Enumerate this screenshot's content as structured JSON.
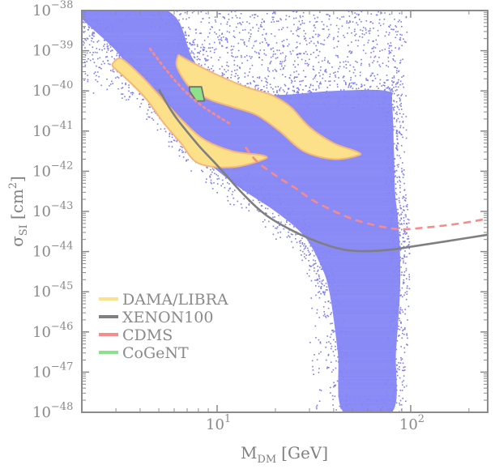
{
  "chart_data": {
    "type": "scatter",
    "title": "",
    "xlabel": "M",
    "xlabel_sub": "DM",
    "xlabel_unit": "[GeV]",
    "ylabel": "σ",
    "ylabel_sub": "SI",
    "ylabel_unit": "[cm",
    "ylabel_unit_sup": "2",
    "ylabel_unit_close": "]",
    "xscale": "log",
    "yscale": "log",
    "xlim": [
      2.0,
      250
    ],
    "ylim": [
      1e-48,
      1e-38
    ],
    "x_ticks": [
      {
        "base": "10",
        "exp": "1",
        "value": 10
      },
      {
        "base": "10",
        "exp": "2",
        "value": 100
      }
    ],
    "y_ticks": [
      {
        "base": "10",
        "exp": "−38",
        "value": -38
      },
      {
        "base": "10",
        "exp": "−39",
        "value": -39
      },
      {
        "base": "10",
        "exp": "−40",
        "value": -40
      },
      {
        "base": "10",
        "exp": "−41",
        "value": -41
      },
      {
        "base": "10",
        "exp": "−42",
        "value": -42
      },
      {
        "base": "10",
        "exp": "−43",
        "value": -43
      },
      {
        "base": "10",
        "exp": "−44",
        "value": -44
      },
      {
        "base": "10",
        "exp": "−45",
        "value": -45
      },
      {
        "base": "10",
        "exp": "−46",
        "value": -46
      },
      {
        "base": "10",
        "exp": "−47",
        "value": -47
      },
      {
        "base": "10",
        "exp": "−48",
        "value": -48
      }
    ],
    "legend": {
      "placement": "lower-left",
      "entries": [
        {
          "label": "DAMA/LIBRA",
          "color": "#fde08a"
        },
        {
          "label": "XENON100",
          "color": "#7f7f7f"
        },
        {
          "label": "CDMS",
          "color": "#f88a8a"
        },
        {
          "label": "CoGeNT",
          "color": "#8ee08a"
        }
      ]
    },
    "colors": {
      "scan_points": "#7b7bf2",
      "scan_fill": "#8484f5",
      "dama_fill": "#fde08a",
      "dama_edge": "#f4b67a",
      "xenon": "#7f7f7f",
      "cdms": "#f88a8a",
      "cogent_fill": "#8ee08a",
      "cogent_edge": "#707070",
      "axis": "#8a8a8a"
    },
    "series": [
      {
        "name": "Model scan (dense region)",
        "kind": "filled-region",
        "note": "log10 sigma vs M [GeV]",
        "boundary": [
          [
            2.0,
            -38.0
          ],
          [
            5.5,
            -38.0
          ],
          [
            7.5,
            -39.2
          ],
          [
            10,
            -40.0
          ],
          [
            20,
            -40.1
          ],
          [
            40,
            -40.0
          ],
          [
            75,
            -40.0
          ],
          [
            80,
            -40.3
          ],
          [
            82,
            -41.5
          ],
          [
            83,
            -42.5
          ],
          [
            86,
            -43.2
          ],
          [
            88,
            -44.0
          ],
          [
            88,
            -45.0
          ],
          [
            84,
            -46.5
          ],
          [
            80,
            -48.0
          ],
          [
            45,
            -48.0
          ],
          [
            42,
            -46.5
          ],
          [
            38,
            -45.0
          ],
          [
            34,
            -44.3
          ],
          [
            28,
            -43.6
          ],
          [
            20,
            -43.0
          ],
          [
            13,
            -42.4
          ],
          [
            9,
            -41.8
          ],
          [
            6.5,
            -41.2
          ],
          [
            5.0,
            -40.5
          ],
          [
            4.0,
            -39.8
          ],
          [
            3.0,
            -39.0
          ],
          [
            2.0,
            -38.2
          ]
        ]
      },
      {
        "name": "DAMA/LIBRA (low-mass region)",
        "kind": "filled-region",
        "boundary": [
          [
            2.9,
            -39.3
          ],
          [
            3.2,
            -39.2
          ],
          [
            4.0,
            -39.6
          ],
          [
            5.0,
            -40.1
          ],
          [
            6.5,
            -40.7
          ],
          [
            8.5,
            -41.2
          ],
          [
            12,
            -41.5
          ],
          [
            17,
            -41.6
          ],
          [
            17.5,
            -41.7
          ],
          [
            12,
            -41.9
          ],
          [
            8.0,
            -41.8
          ],
          [
            6.5,
            -41.3
          ],
          [
            5.3,
            -40.8
          ],
          [
            4.3,
            -40.2
          ],
          [
            3.4,
            -39.7
          ],
          [
            2.9,
            -39.4
          ]
        ]
      },
      {
        "name": "DAMA/LIBRA (high-mass region)",
        "kind": "filled-region",
        "boundary": [
          [
            6.3,
            -39.1
          ],
          [
            7.5,
            -39.3
          ],
          [
            10,
            -39.6
          ],
          [
            14,
            -39.9
          ],
          [
            19,
            -40.1
          ],
          [
            24,
            -40.4
          ],
          [
            30,
            -40.9
          ],
          [
            40,
            -41.3
          ],
          [
            52,
            -41.5
          ],
          [
            54,
            -41.6
          ],
          [
            40,
            -41.7
          ],
          [
            28,
            -41.5
          ],
          [
            21,
            -41.0
          ],
          [
            16,
            -40.6
          ],
          [
            12,
            -40.4
          ],
          [
            9,
            -40.2
          ],
          [
            7.2,
            -39.9
          ],
          [
            6.2,
            -39.4
          ]
        ]
      },
      {
        "name": "CoGeNT",
        "kind": "filled-region",
        "boundary": [
          [
            7.2,
            -39.9
          ],
          [
            8.3,
            -39.9
          ],
          [
            8.6,
            -40.25
          ],
          [
            7.8,
            -40.25
          ],
          [
            7.2,
            -40.0
          ]
        ]
      },
      {
        "name": "XENON100",
        "kind": "line",
        "style": "solid",
        "points": [
          [
            5.0,
            -39.96
          ],
          [
            6.0,
            -40.6
          ],
          [
            8.0,
            -41.35
          ],
          [
            10,
            -41.85
          ],
          [
            13.7,
            -42.58
          ],
          [
            18,
            -43.1
          ],
          [
            25,
            -43.5
          ],
          [
            35,
            -43.8
          ],
          [
            45,
            -43.95
          ],
          [
            58,
            -43.99
          ],
          [
            80,
            -43.95
          ],
          [
            100,
            -43.88
          ],
          [
            150,
            -43.75
          ],
          [
            250,
            -43.58
          ]
        ]
      },
      {
        "name": "CDMS (dotted, low mass)",
        "kind": "line",
        "style": "dotted",
        "points": [
          [
            4.5,
            -38.95
          ],
          [
            5.5,
            -39.5
          ],
          [
            6.8,
            -40.0
          ],
          [
            8.5,
            -40.4
          ],
          [
            11.5,
            -40.8
          ]
        ]
      },
      {
        "name": "CDMS",
        "kind": "line",
        "style": "dashed",
        "points": [
          [
            14,
            -41.4
          ],
          [
            16,
            -41.75
          ],
          [
            20,
            -42.1
          ],
          [
            25,
            -42.4
          ],
          [
            32,
            -42.75
          ],
          [
            45,
            -43.1
          ],
          [
            60,
            -43.3
          ],
          [
            86,
            -43.44
          ],
          [
            120,
            -43.4
          ],
          [
            180,
            -43.3
          ],
          [
            250,
            -43.18
          ]
        ]
      }
    ]
  }
}
